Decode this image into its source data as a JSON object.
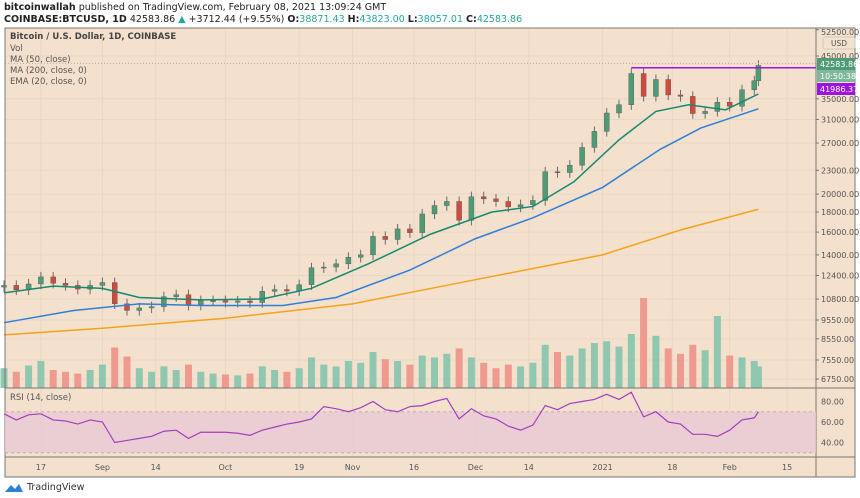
{
  "header": {
    "author": "bitcoinwallah",
    "published": "published on TradingView.com, February 08, 2021 13:09:24 GMT",
    "symbol": "COINBASE:BTCUSD, 1D",
    "last": "42583.86",
    "change": "+3712.44 (+9.55%)",
    "o_label": "O:",
    "o": "38871.43",
    "h_label": "H:",
    "h": "43823.00",
    "l_label": "L:",
    "l": "38057.01",
    "c_label": "C:",
    "c": "42583.86"
  },
  "legend": [
    "Bitcoin / U.S. Dollar, 1D, COINBASE",
    "Vol",
    "MA (50, close)",
    "MA (200, close, 0)",
    "EMA (20, close, 0)"
  ],
  "rsi_label": "RSI (14, close)",
  "currency": "USD",
  "price_tag": "42583.86",
  "countdown_tag": "10:50:38",
  "level_tag": "41986.37",
  "footer": {
    "brand": "TradingView"
  },
  "colors": {
    "background": "#f3e1ce",
    "up": "#4f9b76",
    "down": "#cf4b3c",
    "vol_up": "#8fc7b0",
    "vol_down": "#ef9a8e",
    "ema20": "#16896f",
    "ma50": "#2f7fd8",
    "ma200": "#f7a21b",
    "level": "#9b14e0",
    "rsi": "#a23fc0",
    "rsi_band": "#e8c9d5"
  },
  "chart_data": {
    "type": "candlestick",
    "price_scale": "log",
    "price_axis_ticks": [
      "52500.00",
      "45000.00",
      "35000.00",
      "31000.00",
      "27000.00",
      "23000.00",
      "20000.00",
      "18000.00",
      "16000.00",
      "14000.00",
      "12400.00",
      "10800.00",
      "9550.00",
      "8550.00",
      "7550.00",
      "6750.00"
    ],
    "rsi_axis_ticks": [
      "80.00",
      "60.00",
      "40.00"
    ],
    "x_ticks": [
      {
        "d": "2020-08-17",
        "t": "17"
      },
      {
        "d": "2020-09-01",
        "t": "Sep"
      },
      {
        "d": "2020-09-14",
        "t": "14"
      },
      {
        "d": "2020-10-01",
        "t": "Oct"
      },
      {
        "d": "2020-10-19",
        "t": "19"
      },
      {
        "d": "2020-11-01",
        "t": "Nov"
      },
      {
        "d": "2020-11-16",
        "t": "16"
      },
      {
        "d": "2020-12-01",
        "t": "Dec"
      },
      {
        "d": "2020-12-14",
        "t": "14"
      },
      {
        "d": "2021-01-01",
        "t": "2021"
      },
      {
        "d": "2021-01-18",
        "t": "18"
      },
      {
        "d": "2021-02-01",
        "t": "Feb"
      },
      {
        "d": "2021-02-15",
        "t": "15"
      }
    ],
    "horizontal_level": 41986.37,
    "level_start": "2021-01-08",
    "dates": [
      "2020-08-08",
      "2020-08-11",
      "2020-08-14",
      "2020-08-17",
      "2020-08-20",
      "2020-08-23",
      "2020-08-26",
      "2020-08-29",
      "2020-09-01",
      "2020-09-04",
      "2020-09-07",
      "2020-09-10",
      "2020-09-13",
      "2020-09-16",
      "2020-09-19",
      "2020-09-22",
      "2020-09-25",
      "2020-09-28",
      "2020-10-01",
      "2020-10-04",
      "2020-10-07",
      "2020-10-10",
      "2020-10-13",
      "2020-10-16",
      "2020-10-19",
      "2020-10-22",
      "2020-10-25",
      "2020-10-28",
      "2020-10-31",
      "2020-11-03",
      "2020-11-06",
      "2020-11-09",
      "2020-11-12",
      "2020-11-15",
      "2020-11-18",
      "2020-11-21",
      "2020-11-24",
      "2020-11-27",
      "2020-11-30",
      "2020-12-03",
      "2020-12-06",
      "2020-12-09",
      "2020-12-12",
      "2020-12-15",
      "2020-12-18",
      "2020-12-21",
      "2020-12-24",
      "2020-12-27",
      "2020-12-30",
      "2021-01-02",
      "2021-01-05",
      "2021-01-08",
      "2021-01-11",
      "2021-01-14",
      "2021-01-17",
      "2021-01-20",
      "2021-01-23",
      "2021-01-26",
      "2021-01-29",
      "2021-02-01",
      "2021-02-04",
      "2021-02-07",
      "2021-02-08"
    ],
    "close": [
      11700,
      11400,
      11800,
      12300,
      11850,
      11700,
      11450,
      11700,
      11900,
      10500,
      10100,
      10250,
      10330,
      10950,
      11080,
      10420,
      10700,
      10700,
      10600,
      10680,
      10580,
      11300,
      11420,
      11320,
      11750,
      12980,
      13030,
      13280,
      13800,
      14000,
      15600,
      15320,
      16300,
      15950,
      17800,
      18700,
      19150,
      17150,
      19700,
      19450,
      19150,
      18550,
      18800,
      19270,
      22800,
      22700,
      23700,
      26300,
      28900,
      32200,
      33800,
      40600,
      35500,
      39200,
      35800,
      35500,
      32100,
      32500,
      34300,
      33500,
      36900,
      38900,
      42583.86
    ],
    "volume": [
      22,
      18,
      25,
      30,
      20,
      18,
      16,
      20,
      26,
      45,
      35,
      22,
      18,
      24,
      20,
      26,
      18,
      16,
      15,
      14,
      16,
      24,
      20,
      18,
      22,
      34,
      26,
      24,
      30,
      28,
      40,
      32,
      30,
      26,
      36,
      34,
      38,
      44,
      34,
      28,
      22,
      26,
      24,
      28,
      48,
      40,
      36,
      44,
      50,
      52,
      46,
      60,
      100,
      58,
      44,
      38,
      48,
      42,
      80,
      36,
      34,
      30,
      24
    ],
    "rsi": [
      68,
      62,
      67,
      68,
      62,
      61,
      58,
      62,
      60,
      40,
      42,
      44,
      46,
      51,
      52,
      44,
      50,
      50,
      50,
      49,
      47,
      52,
      55,
      58,
      60,
      63,
      75,
      73,
      70,
      74,
      80,
      72,
      70,
      75,
      76,
      80,
      83,
      63,
      73,
      66,
      63,
      56,
      52,
      57,
      76,
      72,
      78,
      80,
      82,
      87,
      82,
      89,
      65,
      70,
      60,
      58,
      48,
      48,
      46,
      52,
      62,
      64,
      70
    ],
    "ema20": [
      {
        "d": "2020-08-08",
        "v": 11200
      },
      {
        "d": "2020-08-20",
        "v": 11650
      },
      {
        "d": "2020-09-01",
        "v": 11500
      },
      {
        "d": "2020-09-10",
        "v": 10900
      },
      {
        "d": "2020-09-25",
        "v": 10750
      },
      {
        "d": "2020-10-10",
        "v": 10800
      },
      {
        "d": "2020-10-22",
        "v": 11500
      },
      {
        "d": "2020-11-05",
        "v": 13300
      },
      {
        "d": "2020-11-20",
        "v": 15800
      },
      {
        "d": "2020-12-05",
        "v": 18000
      },
      {
        "d": "2020-12-15",
        "v": 18600
      },
      {
        "d": "2020-12-25",
        "v": 21500
      },
      {
        "d": "2021-01-05",
        "v": 27500
      },
      {
        "d": "2021-01-14",
        "v": 32500
      },
      {
        "d": "2021-01-22",
        "v": 33800
      },
      {
        "d": "2021-01-31",
        "v": 32800
      },
      {
        "d": "2021-02-08",
        "v": 36000
      }
    ],
    "ma50": [
      {
        "d": "2020-08-08",
        "v": 9400
      },
      {
        "d": "2020-08-25",
        "v": 10100
      },
      {
        "d": "2020-09-10",
        "v": 10500
      },
      {
        "d": "2020-09-25",
        "v": 10400
      },
      {
        "d": "2020-10-15",
        "v": 10400
      },
      {
        "d": "2020-10-28",
        "v": 10900
      },
      {
        "d": "2020-11-15",
        "v": 12800
      },
      {
        "d": "2020-12-01",
        "v": 15400
      },
      {
        "d": "2020-12-15",
        "v": 17400
      },
      {
        "d": "2021-01-01",
        "v": 20800
      },
      {
        "d": "2021-01-15",
        "v": 26000
      },
      {
        "d": "2021-01-25",
        "v": 29500
      },
      {
        "d": "2021-02-08",
        "v": 33000
      }
    ],
    "ma200": [
      {
        "d": "2020-08-08",
        "v": 8750
      },
      {
        "d": "2020-09-01",
        "v": 9100
      },
      {
        "d": "2020-10-01",
        "v": 9650
      },
      {
        "d": "2020-11-01",
        "v": 10500
      },
      {
        "d": "2020-12-01",
        "v": 12100
      },
      {
        "d": "2021-01-01",
        "v": 14000
      },
      {
        "d": "2021-01-20",
        "v": 16200
      },
      {
        "d": "2021-02-08",
        "v": 18300
      }
    ]
  }
}
